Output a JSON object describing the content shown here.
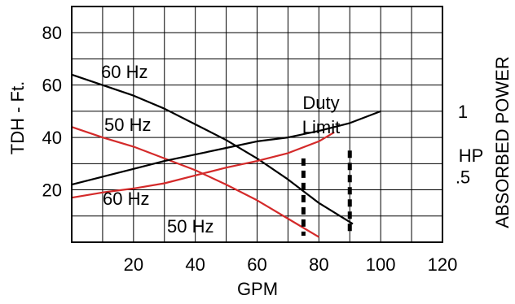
{
  "chart_data": {
    "type": "line",
    "xlabel": "GPM",
    "ylabel": "TDH - Ft.",
    "y2label": "ABSORBED POWER",
    "y2unit": "HP",
    "xlim": [
      0,
      120
    ],
    "ylim": [
      0,
      90
    ],
    "y2lim": [
      0,
      1.8
    ],
    "grid": true,
    "x_ticks": [
      "20",
      "40",
      "60",
      "80",
      "100",
      "120"
    ],
    "x_tick_values": [
      20,
      40,
      60,
      80,
      100,
      120
    ],
    "y_ticks": [
      "20",
      "40",
      "60",
      "80"
    ],
    "y_tick_values": [
      20,
      40,
      60,
      80
    ],
    "y2_ticks": [
      "1",
      ".5"
    ],
    "y2_tick_values": [
      1,
      0.5
    ],
    "series": [
      {
        "name": "60 Hz",
        "group": "head",
        "color": "#000000",
        "x": [
          0,
          10,
          20,
          30,
          40,
          50,
          60,
          70,
          80,
          91
        ],
        "y": [
          64,
          60,
          56,
          51,
          45,
          39,
          32,
          24,
          15,
          7
        ]
      },
      {
        "name": "50 Hz",
        "group": "head",
        "color": "#d42a2a",
        "x": [
          0,
          10,
          20,
          30,
          40,
          50,
          60,
          70,
          80
        ],
        "y": [
          44,
          40,
          36.5,
          32,
          27.5,
          22,
          16,
          9,
          2
        ]
      },
      {
        "name": "60 Hz",
        "group": "power",
        "color": "#000000",
        "x": [
          0,
          10,
          20,
          30,
          40,
          50,
          60,
          70,
          80,
          90,
          100
        ],
        "y": [
          0.44,
          0.5,
          0.56,
          0.62,
          0.67,
          0.72,
          0.77,
          0.8,
          0.85,
          0.91,
          1.0
        ]
      },
      {
        "name": "50 Hz",
        "group": "power",
        "color": "#d42a2a",
        "x": [
          0,
          10,
          20,
          30,
          40,
          50,
          60,
          70,
          80,
          85
        ],
        "y": [
          0.34,
          0.38,
          0.41,
          0.45,
          0.51,
          0.57,
          0.62,
          0.68,
          0.77,
          0.84
        ]
      }
    ],
    "duty_limits": [
      {
        "x": 75,
        "y_top": 32,
        "y_bottom": 0
      },
      {
        "x": 90,
        "y_top": 35,
        "y_bottom": 0
      }
    ],
    "annotations": {
      "duty_line1": "Duty",
      "duty_line2": "Limit"
    },
    "labels": {
      "head_60": "60 Hz",
      "head_50": "50 Hz",
      "power_60": "60 Hz",
      "power_50": "50 Hz"
    }
  }
}
